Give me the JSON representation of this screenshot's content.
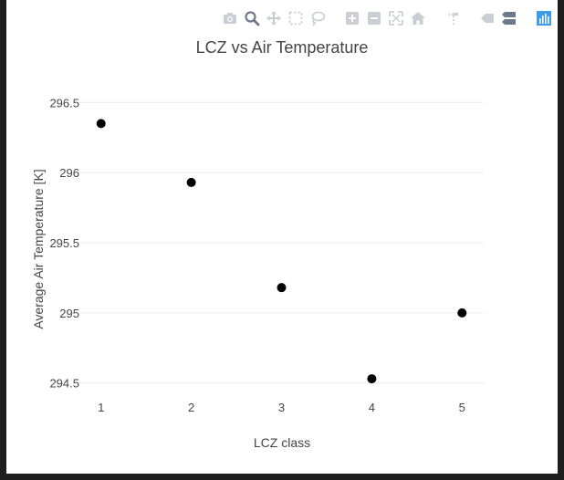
{
  "modebar": {
    "buttons": [
      {
        "name": "camera-icon"
      },
      {
        "name": "zoom-icon"
      },
      {
        "name": "pan-icon"
      },
      {
        "name": "box-select-icon"
      },
      {
        "name": "lasso-select-icon"
      },
      {
        "name": "zoom-in-icon"
      },
      {
        "name": "zoom-out-icon"
      },
      {
        "name": "autoscale-icon"
      },
      {
        "name": "home-icon"
      },
      {
        "name": "spike-lines-icon"
      },
      {
        "name": "hover-closest-icon"
      },
      {
        "name": "hover-compare-icon"
      },
      {
        "name": "plotly-logo-icon"
      }
    ],
    "active_color": "#6c7a8a",
    "inactive_color": "#c8ced4",
    "logo_color": "#3f9be8"
  },
  "chart_data": {
    "type": "scatter",
    "title": "LCZ vs Air Temperature",
    "xlabel": "LCZ class",
    "ylabel": "Average Air Temperature [K]",
    "x": [
      1,
      2,
      3,
      4,
      5
    ],
    "y": [
      296.35,
      295.93,
      295.18,
      294.53,
      295.0
    ],
    "xticks": [
      "1",
      "2",
      "3",
      "4",
      "5"
    ],
    "yticks": [
      294.5,
      295,
      295.5,
      296,
      296.5
    ],
    "ytick_labels": [
      "294.5",
      "295",
      "295.5",
      "296",
      "296.5"
    ],
    "xlim": [
      0.76,
      5.24
    ],
    "ylim": [
      294.42,
      296.58
    ],
    "grid": true,
    "marker_color": "#000000"
  }
}
